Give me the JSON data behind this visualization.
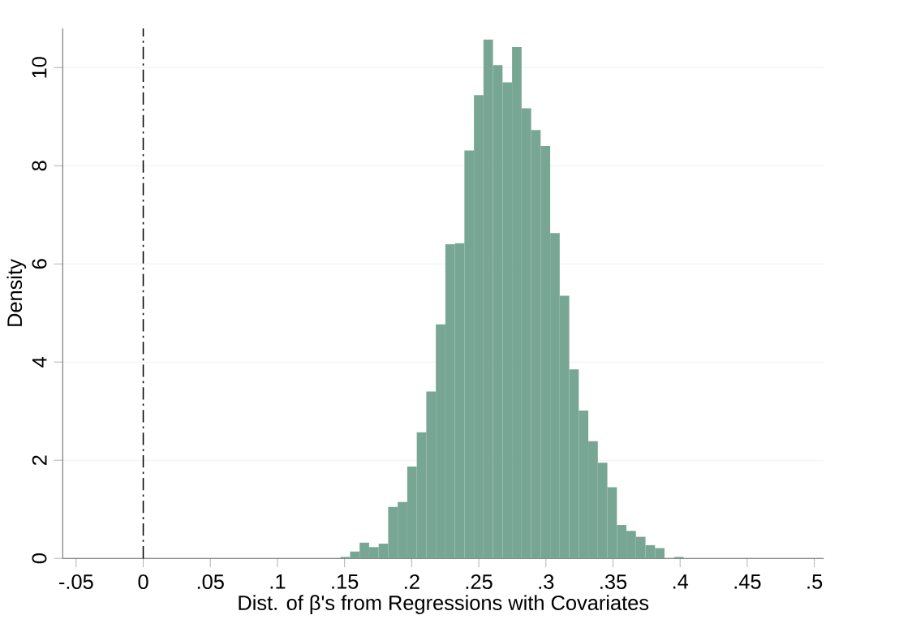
{
  "chart_data": {
    "type": "histogram",
    "xlabel": "Dist. of β's from Regressions with Covariates",
    "ylabel": "Density",
    "bins": [
      0.147,
      0.1541,
      0.1612,
      0.1683,
      0.1754,
      0.1825,
      0.1896,
      0.1967,
      0.2038,
      0.2109,
      0.218,
      0.2251,
      0.2322,
      0.2393,
      0.2464,
      0.2535,
      0.2606,
      0.2677,
      0.2748,
      0.2819,
      0.289,
      0.2961,
      0.3032,
      0.3103,
      0.3174,
      0.3245,
      0.3316,
      0.3387,
      0.3458,
      0.3529,
      0.36,
      0.3671,
      0.3742,
      0.3813,
      0.3884,
      0.3955,
      0.4026
    ],
    "values": [
      0.03,
      0.14,
      0.32,
      0.23,
      0.3,
      1.05,
      1.15,
      1.87,
      2.57,
      3.4,
      4.77,
      6.4,
      6.42,
      8.31,
      9.44,
      10.57,
      10.05,
      9.7,
      10.42,
      9.17,
      8.73,
      8.4,
      6.63,
      5.35,
      3.85,
      3.01,
      2.39,
      1.95,
      1.45,
      0.68,
      0.56,
      0.44,
      0.27,
      0.21,
      0,
      0.03
    ],
    "color": "#78a694",
    "xlim": [
      -0.06,
      0.507
    ],
    "ylim": [
      0,
      10.8
    ],
    "xticks": [
      {
        "value": -0.05,
        "label": "-.05"
      },
      0,
      {
        "value": 0.05,
        "label": ".05"
      },
      {
        "value": 0.1,
        "label": ".1"
      },
      {
        "value": 0.15,
        "label": ".15"
      },
      {
        "value": 0.2,
        "label": ".2"
      },
      {
        "value": 0.25,
        "label": ".25"
      },
      {
        "value": 0.3,
        "label": ".3"
      },
      {
        "value": 0.35,
        "label": ".35"
      },
      {
        "value": 0.4,
        "label": ".4"
      },
      {
        "value": 0.45,
        "label": ".45"
      },
      {
        "value": 0.5,
        "label": ".5"
      }
    ],
    "yticks": [
      0,
      2,
      4,
      6,
      8,
      10
    ],
    "grid": "y",
    "ref_lines": [
      {
        "axis": "x",
        "value": 0,
        "color": "#000000",
        "line_style": "dashed"
      }
    ]
  }
}
